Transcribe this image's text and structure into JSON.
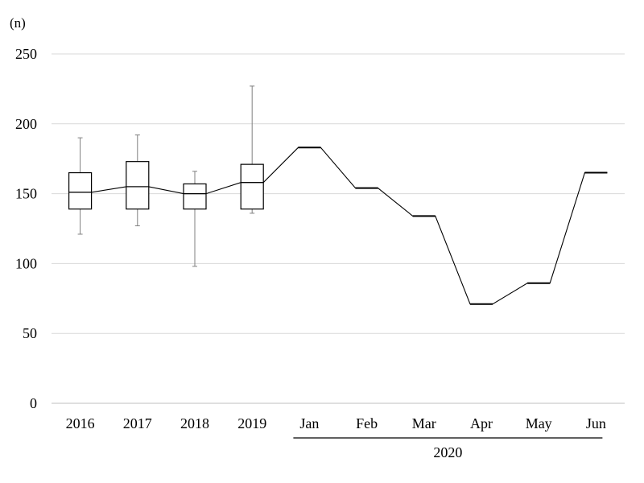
{
  "chart_data": {
    "type": "line",
    "y_unit_label": "(n)",
    "ylim": [
      0,
      250
    ],
    "y_ticks": [
      "0",
      "50",
      "100",
      "150",
      "200",
      "250"
    ],
    "grid": true,
    "categories": [
      "2016",
      "2017",
      "2018",
      "2019",
      "Jan",
      "Feb",
      "Mar",
      "Apr",
      "May",
      "Jun"
    ],
    "group_label": "2020",
    "boxplots": [
      {
        "category": "2016",
        "whisker_low": 121,
        "q1": 139,
        "median": 151,
        "q3": 165,
        "whisker_high": 190
      },
      {
        "category": "2017",
        "whisker_low": 127,
        "q1": 139,
        "median": 155,
        "q3": 173,
        "whisker_high": 192
      },
      {
        "category": "2018",
        "whisker_low": 98,
        "q1": 139,
        "median": 150,
        "q3": 157,
        "whisker_high": 166
      },
      {
        "category": "2019",
        "whisker_low": 136,
        "q1": 139,
        "median": 158,
        "q3": 171,
        "whisker_high": 227
      }
    ],
    "monthly_values": [
      {
        "category": "Jan",
        "value": 183
      },
      {
        "category": "Feb",
        "value": 154
      },
      {
        "category": "Mar",
        "value": 134
      },
      {
        "category": "Apr",
        "value": 71
      },
      {
        "category": "May",
        "value": 86
      },
      {
        "category": "Jun",
        "value": 165
      }
    ],
    "colors": {
      "line": "#000000",
      "grid": "#d9d9d9",
      "axis": "#bfbfbf"
    }
  }
}
